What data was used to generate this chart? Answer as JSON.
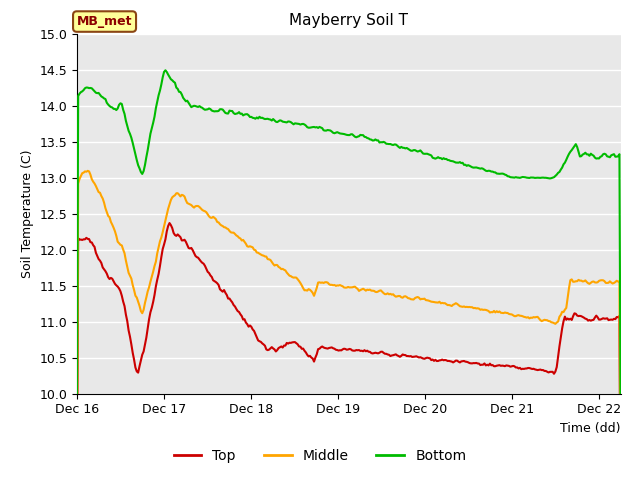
{
  "title": "Mayberry Soil T",
  "ylabel": "Soil Temperature (C)",
  "xlabel": "Time (dd)",
  "ylim": [
    10.0,
    15.0
  ],
  "xlim": [
    0,
    6.25
  ],
  "xtick_positions": [
    0,
    1,
    2,
    3,
    4,
    5,
    6
  ],
  "xtick_labels": [
    "Dec 16",
    "Dec 17",
    "Dec 18",
    "Dec 19",
    "Dec 20",
    "Dec 21",
    "Dec 22"
  ],
  "ytick_positions": [
    10.0,
    10.5,
    11.0,
    11.5,
    12.0,
    12.5,
    13.0,
    13.5,
    14.0,
    14.5,
    15.0
  ],
  "legend_label_box": "MB_met",
  "legend_box_facecolor": "#FFFF99",
  "legend_box_edgecolor": "#8B4513",
  "legend_box_textcolor": "#8B0000",
  "bg_color": "#E8E8E8",
  "grid_color": "#FFFFFF",
  "top_color": "#CC0000",
  "middle_color": "#FFA500",
  "bottom_color": "#00BB00",
  "line_width": 1.5
}
